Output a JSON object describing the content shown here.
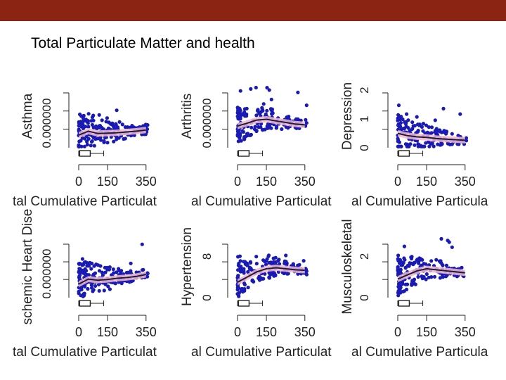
{
  "slide": {
    "title": "Total Particulate Matter and health",
    "header_color": "#8b2412"
  },
  "chart_data": [
    {
      "type": "scatter",
      "ylabel": "Asthma",
      "xlabel": "tal Cumulative Particulat",
      "xticks": [
        "0",
        "150",
        "350"
      ],
      "yticks": [
        "0.000000"
      ],
      "ylim": [
        0,
        1.6
      ],
      "xlim": [
        0,
        380
      ],
      "seed": 11,
      "trend": [
        [
          0,
          0.32
        ],
        [
          50,
          0.42
        ],
        [
          100,
          0.36
        ],
        [
          150,
          0.37
        ],
        [
          200,
          0.38
        ],
        [
          250,
          0.4
        ],
        [
          300,
          0.42
        ],
        [
          350,
          0.45
        ]
      ],
      "point_color": "#1a1ab4",
      "band_color": "#f0b8cc"
    },
    {
      "type": "scatter",
      "ylabel": "Arthritis",
      "xlabel": "al Cumulative Particulat",
      "xticks": [
        "0",
        "150",
        "350"
      ],
      "yticks": [
        "0.000000"
      ],
      "ylim": [
        0,
        1.6
      ],
      "xlim": [
        0,
        380
      ],
      "seed": 23,
      "trend": [
        [
          0,
          0.55
        ],
        [
          50,
          0.62
        ],
        [
          100,
          0.7
        ],
        [
          150,
          0.72
        ],
        [
          200,
          0.68
        ],
        [
          250,
          0.64
        ],
        [
          300,
          0.6
        ],
        [
          350,
          0.58
        ]
      ],
      "point_color": "#1a1ab4",
      "band_color": "#f0b8cc"
    },
    {
      "type": "scatter",
      "ylabel": "Depression",
      "xlabel": "al Cumulative Particula",
      "xticks": [
        "0",
        "150",
        "350"
      ],
      "yticks": [
        "0",
        "1",
        "2"
      ],
      "ylim": [
        0,
        2.2
      ],
      "xlim": [
        0,
        380
      ],
      "seed": 37,
      "trend": [
        [
          0,
          0.5
        ],
        [
          50,
          0.42
        ],
        [
          100,
          0.38
        ],
        [
          150,
          0.36
        ],
        [
          200,
          0.32
        ],
        [
          250,
          0.3
        ],
        [
          300,
          0.28
        ],
        [
          350,
          0.26
        ]
      ],
      "point_color": "#1a1ab4",
      "band_color": "#f0b8cc"
    },
    {
      "type": "scatter",
      "ylabel": "schemic Heart Dise",
      "xlabel": "tal Cumulative Particulat",
      "xticks": [
        "0",
        "150",
        "350"
      ],
      "yticks": [
        "0.000000"
      ],
      "ylim": [
        0,
        1.6
      ],
      "xlim": [
        0,
        380
      ],
      "seed": 41,
      "trend": [
        [
          0,
          0.35
        ],
        [
          50,
          0.48
        ],
        [
          100,
          0.45
        ],
        [
          150,
          0.47
        ],
        [
          200,
          0.5
        ],
        [
          250,
          0.52
        ],
        [
          300,
          0.55
        ],
        [
          350,
          0.6
        ]
      ],
      "point_color": "#1a1ab4",
      "band_color": "#f0b8cc"
    },
    {
      "type": "scatter",
      "ylabel": "Hypertension",
      "xlabel": "al Cumulative Particulat",
      "xticks": [
        "0",
        "150",
        "350"
      ],
      "yticks": [
        "0",
        "8"
      ],
      "ylim": [
        0,
        12
      ],
      "xlim": [
        0,
        380
      ],
      "seed": 53,
      "trend": [
        [
          0,
          3.0
        ],
        [
          50,
          4.0
        ],
        [
          100,
          5.0
        ],
        [
          150,
          5.6
        ],
        [
          200,
          5.8
        ],
        [
          250,
          5.6
        ],
        [
          300,
          5.4
        ],
        [
          350,
          5.3
        ]
      ],
      "point_color": "#1a1ab4",
      "band_color": "#f0b8cc"
    },
    {
      "type": "scatter",
      "ylabel": "Musculoskeletal",
      "xlabel": "al Cumulative Particula",
      "xticks": [
        "0",
        "150",
        "350"
      ],
      "yticks": [
        "0",
        "2"
      ],
      "ylim": [
        0,
        3
      ],
      "xlim": [
        0,
        380
      ],
      "seed": 67,
      "trend": [
        [
          0,
          0.9
        ],
        [
          50,
          1.1
        ],
        [
          100,
          1.3
        ],
        [
          150,
          1.4
        ],
        [
          200,
          1.35
        ],
        [
          250,
          1.3
        ],
        [
          300,
          1.25
        ],
        [
          350,
          1.2
        ]
      ],
      "point_color": "#1a1ab4",
      "band_color": "#f0b8cc"
    }
  ]
}
